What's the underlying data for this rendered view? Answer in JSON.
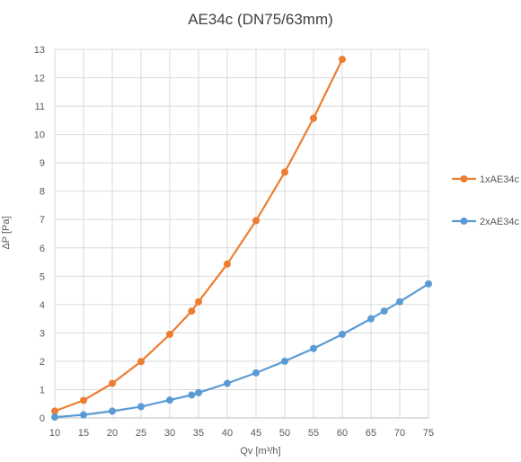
{
  "chart_data": {
    "type": "line",
    "title": "AE34c (DN75/63mm)",
    "xlabel": "Qv [m³/h]",
    "ylabel": "ΔP [Pa]",
    "xlim": [
      10,
      75
    ],
    "ylim": [
      0,
      13
    ],
    "x_ticks": [
      "10",
      "15",
      "20",
      "25",
      "30",
      "35",
      "40",
      "45",
      "50",
      "55",
      "60",
      "65",
      "70",
      "75"
    ],
    "y_ticks": [
      "0",
      "1",
      "2",
      "3",
      "4",
      "5",
      "6",
      "7",
      "8",
      "9",
      "10",
      "11",
      "12",
      "13"
    ],
    "grid": true,
    "legend_position": "right",
    "series": [
      {
        "name": "1xAE34c",
        "color": "#ED7D31",
        "points": [
          [
            10,
            0.24
          ],
          [
            15,
            0.62
          ],
          [
            20,
            1.22
          ],
          [
            25,
            1.99
          ],
          [
            30,
            2.95
          ],
          [
            33.8,
            3.77
          ],
          [
            35,
            4.1
          ],
          [
            40,
            5.43
          ],
          [
            45,
            6.96
          ],
          [
            50,
            8.67
          ],
          [
            55,
            10.57
          ],
          [
            60,
            12.65
          ]
        ]
      },
      {
        "name": "2xAE34c",
        "color": "#5B9BD5",
        "points": [
          [
            10,
            0.03
          ],
          [
            15,
            0.11
          ],
          [
            20,
            0.24
          ],
          [
            25,
            0.4
          ],
          [
            30,
            0.63
          ],
          [
            33.8,
            0.81
          ],
          [
            35,
            0.89
          ],
          [
            40,
            1.22
          ],
          [
            45,
            1.59
          ],
          [
            50,
            2.0
          ],
          [
            55,
            2.45
          ],
          [
            60,
            2.95
          ],
          [
            65,
            3.5
          ],
          [
            67.3,
            3.77
          ],
          [
            70,
            4.1
          ],
          [
            75,
            4.73
          ]
        ]
      }
    ]
  }
}
